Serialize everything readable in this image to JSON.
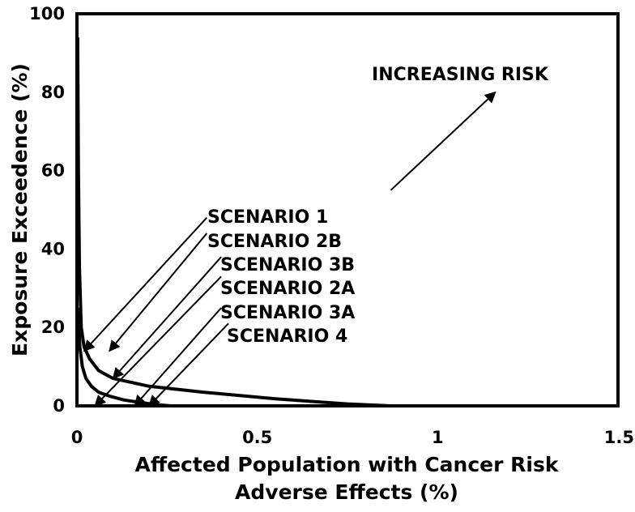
{
  "chart_data": {
    "type": "line",
    "title": "",
    "xlabel_line1": "Affected Population with Cancer Risk",
    "xlabel_line2": "Adverse Effects  (%)",
    "ylabel": "Exposure Exceedence  (%)",
    "xlim": [
      0,
      1.5
    ],
    "ylim": [
      0,
      100
    ],
    "xticks": [
      0,
      0.5,
      1,
      1.5
    ],
    "xtick_labels": [
      "0",
      "0.5",
      "1",
      "1.5"
    ],
    "yticks": [
      0,
      20,
      40,
      60,
      80,
      100
    ],
    "ytick_labels": [
      "0",
      "20",
      "40",
      "60",
      "80",
      "100"
    ],
    "grid": false,
    "legend": "none",
    "line_color": "#000000",
    "series": [
      {
        "x": [
          0.002,
          0.004,
          0.007,
          0.012,
          0.02,
          0.035,
          0.06,
          0.1,
          0.2,
          0.35,
          0.55,
          0.75,
          0.87
        ],
        "y": [
          94,
          60,
          35,
          20,
          15,
          12,
          9,
          7,
          5,
          3.5,
          1.8,
          0.5,
          0
        ]
      },
      {
        "x": [
          0.003,
          0.008,
          0.015,
          0.025,
          0.04,
          0.06,
          0.09,
          0.13,
          0.18,
          0.22,
          0.26
        ],
        "y": [
          25,
          15,
          10,
          7,
          5,
          3.5,
          2.5,
          1.5,
          0.8,
          0.3,
          0
        ]
      }
    ],
    "annotations": {
      "increasing_risk": {
        "text": "INCREASING RISK",
        "arrow_from": [
          0.87,
          55
        ],
        "arrow_to": [
          1.16,
          80
        ]
      },
      "scenarios": [
        {
          "text": "SCENARIO 1",
          "arrow_from": [
            0.36,
            48
          ],
          "arrow_to": [
            0.02,
            14
          ]
        },
        {
          "text": "SCENARIO 2B",
          "arrow_from": [
            0.36,
            44
          ],
          "arrow_to": [
            0.09,
            14
          ]
        },
        {
          "text": "SCENARIO 3B",
          "arrow_from": [
            0.4,
            38
          ],
          "arrow_to": [
            0.1,
            7
          ]
        },
        {
          "text": "SCENARIO 2A",
          "arrow_from": [
            0.4,
            33
          ],
          "arrow_to": [
            0.05,
            0
          ]
        },
        {
          "text": "SCENARIO 3A",
          "arrow_from": [
            0.4,
            25
          ],
          "arrow_to": [
            0.16,
            0
          ]
        },
        {
          "text": "SCENARIO 4",
          "arrow_from": [
            0.42,
            21
          ],
          "arrow_to": [
            0.2,
            0
          ]
        }
      ]
    }
  }
}
